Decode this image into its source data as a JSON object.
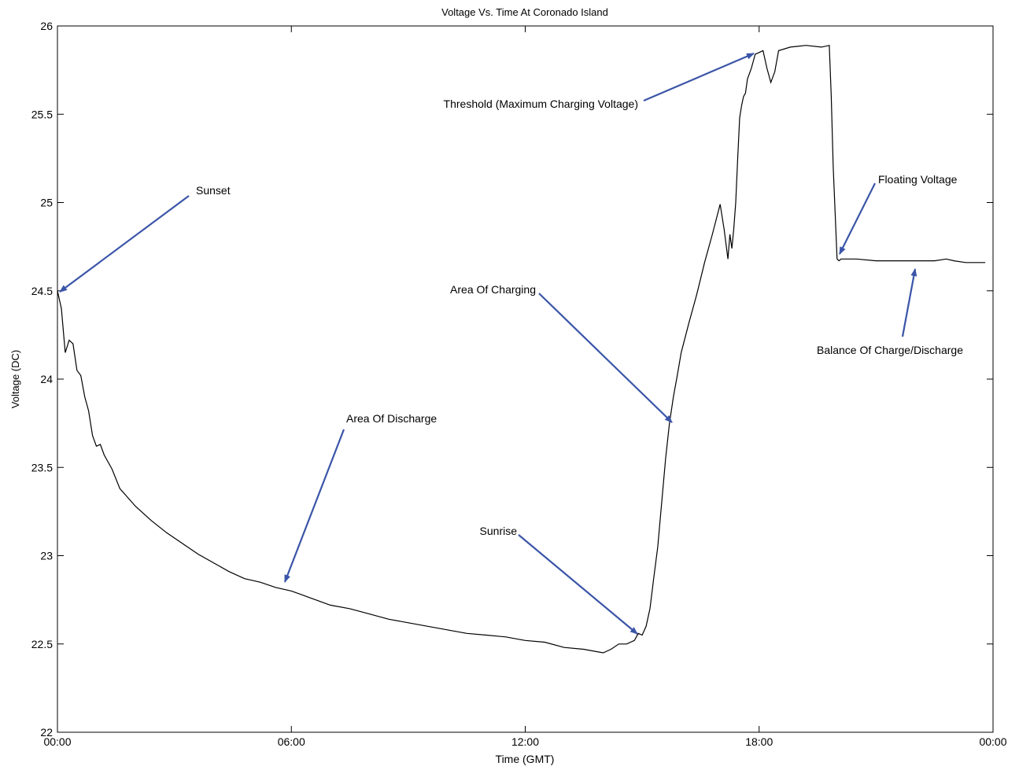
{
  "chart_data": {
    "type": "line",
    "title": "Voltage Vs. Time At Coronado Island",
    "xlabel": "Time (GMT)",
    "ylabel": "Voltage (DC)",
    "xlim": [
      0,
      24
    ],
    "ylim": [
      22,
      26
    ],
    "x_tick_values": [
      0,
      6,
      12,
      18,
      24
    ],
    "x_tick_labels": [
      "00:00",
      "06:00",
      "12:00",
      "18:00",
      "00:00"
    ],
    "y_tick_values": [
      22,
      22.5,
      23,
      23.5,
      24,
      24.5,
      25,
      25.5,
      26
    ],
    "y_tick_labels": [
      "22",
      "22.5",
      "23",
      "23.5",
      "24",
      "24.5",
      "25",
      "25.5",
      "26"
    ],
    "grid": false,
    "line_color": "#000000",
    "annotation_color": "#3a55a8",
    "series": [
      {
        "x": [
          0.0,
          0.1,
          0.2,
          0.3,
          0.4,
          0.5,
          0.6,
          0.7,
          0.8,
          0.9,
          1.0,
          1.1,
          1.2,
          1.4,
          1.6,
          1.8,
          2.0,
          2.4,
          2.8,
          3.2,
          3.6,
          4.0,
          4.4,
          4.8,
          5.2,
          5.6,
          6.0,
          6.5,
          7.0,
          7.5,
          8.0,
          8.5,
          9.0,
          9.5,
          10.0,
          10.5,
          11.0,
          11.5,
          12.0,
          12.5,
          13.0,
          13.5,
          14.0,
          14.2,
          14.4,
          14.6,
          14.8,
          14.9,
          15.0,
          15.1,
          15.2,
          15.3,
          15.4,
          15.5,
          15.6,
          15.7,
          15.8,
          15.9,
          16.0,
          16.2,
          16.4,
          16.6,
          16.8,
          17.0,
          17.1,
          17.2,
          17.25,
          17.3,
          17.35,
          17.4,
          17.45,
          17.5,
          17.55,
          17.6,
          17.65,
          17.7,
          17.8,
          17.9,
          18.0,
          18.1,
          18.2,
          18.3,
          18.4,
          18.5,
          18.8,
          19.2,
          19.6,
          19.8,
          19.85,
          19.9,
          20.0,
          20.05,
          20.1,
          20.2,
          20.5,
          21.0,
          21.5,
          22.0,
          22.5,
          22.8,
          23.0,
          23.3,
          23.6,
          23.8
        ],
        "y": [
          24.5,
          24.4,
          24.15,
          24.22,
          24.2,
          24.05,
          24.02,
          23.9,
          23.82,
          23.68,
          23.62,
          23.63,
          23.57,
          23.49,
          23.38,
          23.33,
          23.28,
          23.2,
          23.13,
          23.07,
          23.01,
          22.96,
          22.91,
          22.87,
          22.85,
          22.82,
          22.8,
          22.76,
          22.72,
          22.7,
          22.67,
          22.64,
          22.62,
          22.6,
          22.58,
          22.56,
          22.55,
          22.54,
          22.52,
          22.51,
          22.48,
          22.47,
          22.45,
          22.47,
          22.5,
          22.5,
          22.52,
          22.56,
          22.55,
          22.6,
          22.7,
          22.88,
          23.05,
          23.3,
          23.55,
          23.75,
          23.9,
          24.02,
          24.15,
          24.32,
          24.48,
          24.66,
          24.82,
          24.99,
          24.85,
          24.68,
          24.82,
          24.74,
          24.85,
          25.0,
          25.25,
          25.48,
          25.55,
          25.6,
          25.62,
          25.7,
          25.76,
          25.84,
          25.85,
          25.86,
          25.76,
          25.68,
          25.74,
          25.86,
          25.88,
          25.89,
          25.88,
          25.89,
          25.6,
          25.2,
          24.68,
          24.67,
          24.68,
          24.68,
          24.68,
          24.67,
          24.67,
          24.67,
          24.67,
          24.68,
          24.67,
          24.66,
          24.66,
          24.66
        ]
      }
    ],
    "annotations": [
      {
        "text": "Sunset"
      },
      {
        "text": "Area Of Discharge"
      },
      {
        "text": "Sunrise"
      },
      {
        "text": "Area Of Charging"
      },
      {
        "text": "Threshold (Maximum Charging Voltage)"
      },
      {
        "text": "Floating Voltage"
      },
      {
        "text": "Balance Of Charge/Discharge"
      }
    ]
  }
}
